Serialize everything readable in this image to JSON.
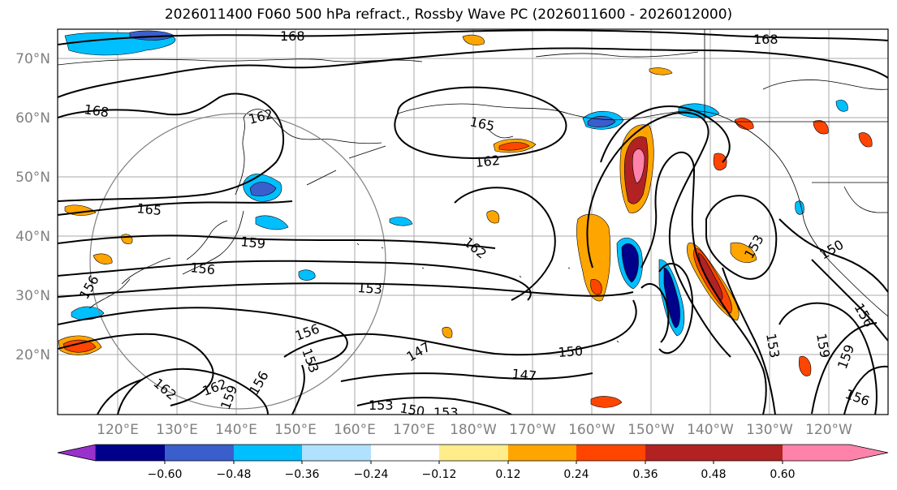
{
  "title": "2026011400 F060 500 hPa refract., Rossby Wave PC (2026011600 - 2026012000)",
  "lat_labels": [
    "70°N",
    "60°N",
    "50°N",
    "40°N",
    "30°N",
    "20°N"
  ],
  "lon_labels": [
    "120°E",
    "130°E",
    "140°E",
    "150°E",
    "160°E",
    "170°E",
    "180°W",
    "170°W",
    "160°W",
    "150°W",
    "140°W",
    "130°W",
    "120°W"
  ],
  "contour_labels": [
    "168",
    "168",
    "168",
    "162",
    "165",
    "162",
    "165",
    "159",
    "156",
    "156",
    "153",
    "162",
    "153",
    "156",
    "153",
    "147",
    "150",
    "147",
    "162",
    "162",
    "159",
    "156",
    "153",
    "150",
    "153",
    "153",
    "159",
    "159",
    "156",
    "150",
    "156"
  ],
  "colorbar": {
    "colors": [
      "#9932cc",
      "#00008b",
      "#3a5fcd",
      "#00bfff",
      "#b0e2ff",
      "#ffffff",
      "#ffec8b",
      "#ffa500",
      "#ff4500",
      "#b22222",
      "#ff82ab"
    ],
    "ticks": [
      "−0.60",
      "−0.48",
      "−0.36",
      "−0.24",
      "−0.12",
      "0.12",
      "0.24",
      "0.36",
      "0.48",
      "0.60"
    ]
  }
}
